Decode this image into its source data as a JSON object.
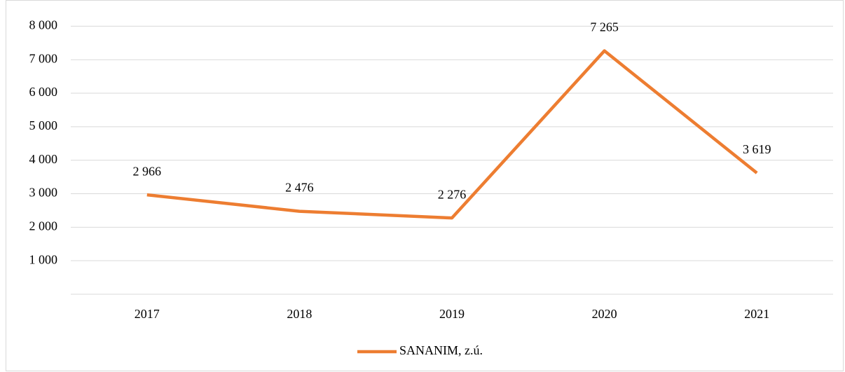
{
  "chart_data": {
    "type": "line",
    "categories": [
      "2017",
      "2018",
      "2019",
      "2020",
      "2021"
    ],
    "series": [
      {
        "name": "SANANIM, z.ú.",
        "color": "#ed7d31",
        "values": [
          2966,
          2476,
          2276,
          7265,
          3619
        ],
        "value_labels": [
          "2 966",
          "2 476",
          "2 276",
          "7 265",
          "3 619"
        ]
      }
    ],
    "ylim": [
      0,
      8000
    ],
    "yticks": [
      {
        "value": 1000,
        "label": "1 000"
      },
      {
        "value": 2000,
        "label": "2 000"
      },
      {
        "value": 3000,
        "label": "3 000"
      },
      {
        "value": 4000,
        "label": "4 000"
      },
      {
        "value": 5000,
        "label": "5 000"
      },
      {
        "value": 6000,
        "label": "6 000"
      },
      {
        "value": 7000,
        "label": "7 000"
      },
      {
        "value": 8000,
        "label": "8 000"
      }
    ],
    "grid": true,
    "legend": "bottom"
  }
}
